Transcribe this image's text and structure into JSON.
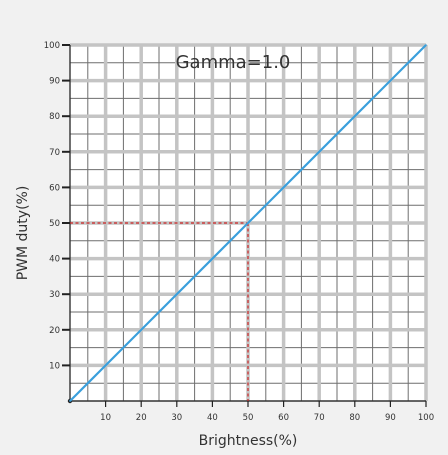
{
  "chart_data": {
    "type": "line",
    "annotation": "Gamma=1.0",
    "xlabel": "Brightness(%)",
    "ylabel": "PWM duty(%)",
    "xlim": [
      0,
      100
    ],
    "ylim": [
      0,
      100
    ],
    "x_ticks": [
      10,
      20,
      30,
      40,
      50,
      60,
      70,
      80,
      90,
      100
    ],
    "y_ticks": [
      10,
      20,
      30,
      40,
      50,
      60,
      70,
      80,
      90,
      100
    ],
    "grid": true,
    "series": [
      {
        "x": [
          0,
          100
        ],
        "y": [
          0,
          100
        ]
      }
    ],
    "reference_point": {
      "x": 50,
      "y": 50
    },
    "colors": {
      "line": "#3a9fdc",
      "reference": "#cc2222",
      "grid_minor": "#6e6e6e",
      "grid_major": "#c4c4c4",
      "plot_background": "#ffffff",
      "page_background": "#f1f1f1"
    }
  }
}
